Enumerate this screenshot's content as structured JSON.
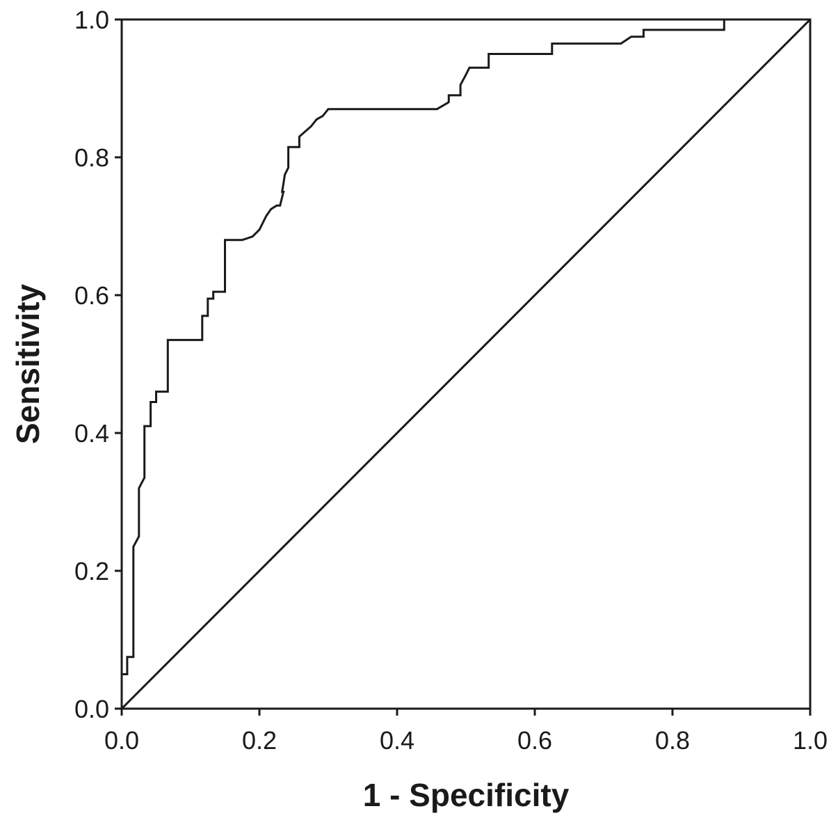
{
  "chart_data": {
    "type": "line",
    "title": "",
    "xlabel": "1 - Specificity",
    "ylabel": "Sensitivity",
    "xlim": [
      0,
      1
    ],
    "ylim": [
      0,
      1
    ],
    "x_ticks": [
      "0.0",
      "0.2",
      "0.4",
      "0.6",
      "0.8",
      "1.0"
    ],
    "y_ticks": [
      "0.0",
      "0.2",
      "0.4",
      "0.6",
      "0.8",
      "1.0"
    ],
    "x_tick_values": [
      0,
      0.2,
      0.4,
      0.6,
      0.8,
      1.0
    ],
    "y_tick_values": [
      0,
      0.2,
      0.4,
      0.6,
      0.8,
      1.0
    ],
    "grid": false,
    "legend": false,
    "series": [
      {
        "name": "",
        "role": "roc-curve",
        "color": "#1a1a1a",
        "points": [
          [
            0.0,
            0.0
          ],
          [
            0.0,
            0.05
          ],
          [
            0.008,
            0.05
          ],
          [
            0.008,
            0.075
          ],
          [
            0.017,
            0.075
          ],
          [
            0.017,
            0.235
          ],
          [
            0.025,
            0.25
          ],
          [
            0.025,
            0.32
          ],
          [
            0.033,
            0.335
          ],
          [
            0.033,
            0.41
          ],
          [
            0.042,
            0.41
          ],
          [
            0.042,
            0.445
          ],
          [
            0.05,
            0.445
          ],
          [
            0.05,
            0.46
          ],
          [
            0.067,
            0.46
          ],
          [
            0.067,
            0.535
          ],
          [
            0.117,
            0.535
          ],
          [
            0.117,
            0.57
          ],
          [
            0.125,
            0.57
          ],
          [
            0.125,
            0.595
          ],
          [
            0.133,
            0.595
          ],
          [
            0.133,
            0.605
          ],
          [
            0.15,
            0.605
          ],
          [
            0.15,
            0.68
          ],
          [
            0.175,
            0.68
          ],
          [
            0.19,
            0.685
          ],
          [
            0.2,
            0.695
          ],
          [
            0.21,
            0.715
          ],
          [
            0.217,
            0.725
          ],
          [
            0.225,
            0.73
          ],
          [
            0.23,
            0.73
          ],
          [
            0.235,
            0.75
          ],
          [
            0.233,
            0.75
          ],
          [
            0.237,
            0.775
          ],
          [
            0.242,
            0.785
          ],
          [
            0.242,
            0.815
          ],
          [
            0.258,
            0.815
          ],
          [
            0.258,
            0.83
          ],
          [
            0.275,
            0.845
          ],
          [
            0.283,
            0.855
          ],
          [
            0.292,
            0.86
          ],
          [
            0.3,
            0.87
          ],
          [
            0.458,
            0.87
          ],
          [
            0.475,
            0.88
          ],
          [
            0.475,
            0.89
          ],
          [
            0.492,
            0.89
          ],
          [
            0.492,
            0.905
          ],
          [
            0.5,
            0.92
          ],
          [
            0.505,
            0.93
          ],
          [
            0.533,
            0.93
          ],
          [
            0.533,
            0.95
          ],
          [
            0.625,
            0.95
          ],
          [
            0.625,
            0.965
          ],
          [
            0.725,
            0.965
          ],
          [
            0.74,
            0.975
          ],
          [
            0.758,
            0.975
          ],
          [
            0.758,
            0.985
          ],
          [
            0.875,
            0.985
          ],
          [
            0.875,
            1.0
          ],
          [
            1.0,
            1.0
          ]
        ]
      },
      {
        "name": "",
        "role": "reference-line",
        "color": "#1a1a1a",
        "points": [
          [
            0,
            0
          ],
          [
            1,
            1
          ]
        ]
      }
    ]
  }
}
